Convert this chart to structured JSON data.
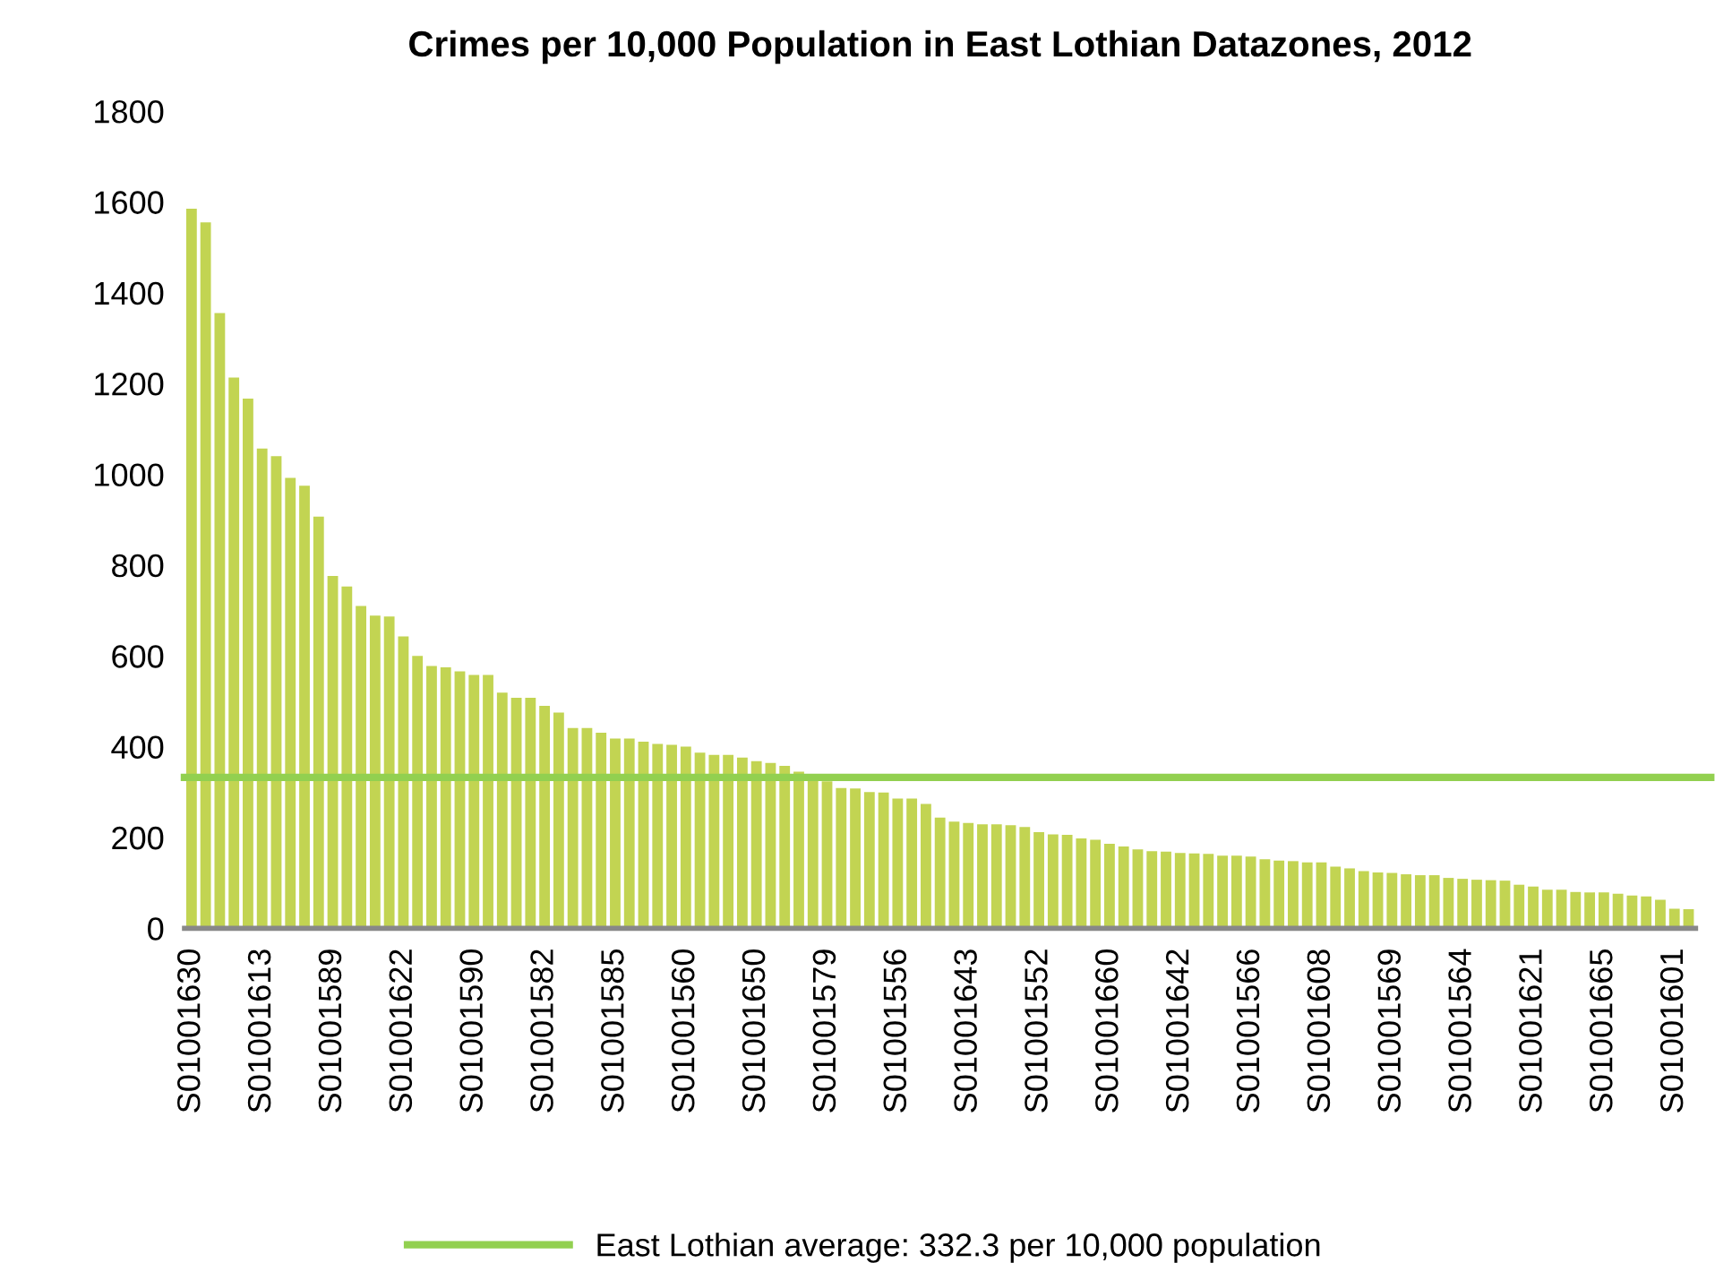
{
  "chart_data": {
    "type": "bar",
    "title": "Crimes per 10,000 Population in East Lothian Datazones, 2012",
    "categories": [
      "S01001630",
      null,
      null,
      null,
      null,
      "S01001613",
      null,
      null,
      null,
      null,
      "S01001589",
      null,
      null,
      null,
      null,
      "S01001622",
      null,
      null,
      null,
      null,
      "S01001590",
      null,
      null,
      null,
      null,
      "S01001582",
      null,
      null,
      null,
      null,
      "S01001585",
      null,
      null,
      null,
      null,
      "S01001560",
      null,
      null,
      null,
      null,
      "S01001650",
      null,
      null,
      null,
      null,
      "S01001579",
      null,
      null,
      null,
      null,
      "S01001556",
      null,
      null,
      null,
      null,
      "S01001643",
      null,
      null,
      null,
      null,
      "S01001552",
      null,
      null,
      null,
      null,
      "S01001660",
      null,
      null,
      null,
      null,
      "S01001642",
      null,
      null,
      null,
      null,
      "S01001566",
      null,
      null,
      null,
      null,
      "S01001608",
      null,
      null,
      null,
      null,
      "S01001569",
      null,
      null,
      null,
      null,
      "S01001564",
      null,
      null,
      null,
      null,
      "S01001621",
      null,
      null,
      null,
      null,
      "S01001665",
      null,
      null,
      null,
      null,
      "S01001601",
      null
    ],
    "values": [
      1585,
      1555,
      1355,
      1213,
      1167,
      1057,
      1040,
      992,
      975,
      907,
      776,
      753,
      710,
      689,
      687,
      643,
      600,
      578,
      575,
      566,
      558,
      558,
      519,
      508,
      508,
      490,
      475,
      441,
      441,
      431,
      418,
      418,
      411,
      406,
      404,
      400,
      387,
      382,
      382,
      376,
      368,
      364,
      358,
      345,
      335,
      324,
      309,
      308,
      300,
      299,
      286,
      286,
      274,
      244,
      235,
      232,
      229,
      229,
      227,
      223,
      212,
      207,
      206,
      198,
      195,
      186,
      180,
      174,
      170,
      169,
      166,
      165,
      164,
      160,
      160,
      158,
      152,
      149,
      148,
      145,
      145,
      136,
      132,
      126,
      123,
      122,
      119,
      117,
      117,
      111,
      109,
      107,
      106,
      105,
      96,
      92,
      85,
      85,
      80,
      79,
      79,
      76,
      72,
      70,
      63,
      43,
      42
    ],
    "color": "#c2d452",
    "ylim": [
      0,
      1800
    ],
    "yticks": [
      0,
      200,
      400,
      600,
      800,
      1000,
      1200,
      1400,
      1600,
      1800
    ],
    "ref_lines": [
      {
        "axis": "y",
        "value": 332.3,
        "label": "East Lothian average: 332.3 per 10,000 population",
        "color": "#92d050",
        "line_style": "solid"
      }
    ],
    "legend": "bottom",
    "grid": false
  }
}
